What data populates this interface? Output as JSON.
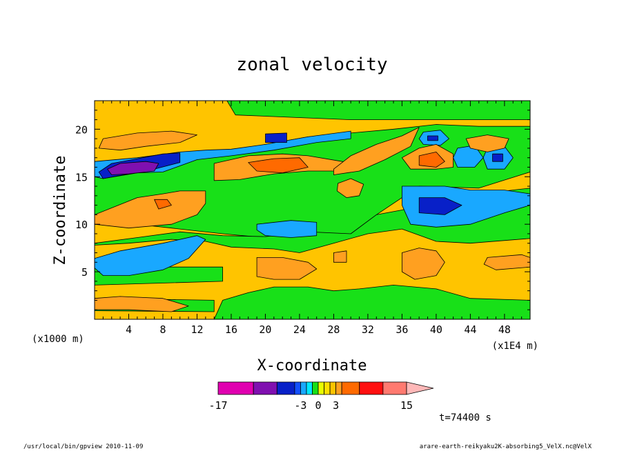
{
  "chart_data": {
    "type": "heatmap",
    "title": "zonal velocity",
    "xlabel": "X-coordinate",
    "ylabel": "Z-coordinate",
    "x_unit": "(x1E4 m)",
    "y_unit": "(x1000 m)",
    "xlim": [
      0,
      51
    ],
    "ylim": [
      0,
      23
    ],
    "x_ticks": [
      4,
      8,
      12,
      16,
      20,
      24,
      28,
      32,
      36,
      40,
      44,
      48
    ],
    "y_ticks": [
      5,
      10,
      15,
      20
    ],
    "time_label": "t=74400 s",
    "colorbar": {
      "tick_labels": [
        {
          "value": -17,
          "label": "-17"
        },
        {
          "value": -3,
          "label": "-3"
        },
        {
          "value": 0,
          "label": "0"
        },
        {
          "value": 3,
          "label": "3"
        },
        {
          "value": 15,
          "label": "15"
        }
      ],
      "levels": [
        -17,
        -11,
        -7,
        -4,
        -3,
        -2,
        -1,
        0,
        1,
        2,
        3,
        4,
        7,
        11,
        15
      ],
      "colors": [
        "#e000b0",
        "#8010b0",
        "#0820c8",
        "#1450ff",
        "#19a8ff",
        "#00e8ff",
        "#18e018",
        "#e8ff00",
        "#ffe000",
        "#ffc400",
        "#ffa020",
        "#ff6a00",
        "#ff1010",
        "#ff7a70",
        "#ffb8b8"
      ]
    },
    "regions": [
      {
        "value": 2,
        "points": [
          [
            0,
            0
          ],
          [
            51,
            0
          ],
          [
            51,
            23
          ],
          [
            0,
            23
          ]
        ]
      },
      {
        "value": -1,
        "points": [
          [
            17,
            23
          ],
          [
            51,
            23
          ],
          [
            51,
            15.5
          ],
          [
            45,
            13.8
          ],
          [
            38,
            14
          ],
          [
            33,
            11
          ],
          [
            30,
            9
          ],
          [
            26,
            8
          ],
          [
            21,
            8.5
          ],
          [
            15,
            9
          ],
          [
            10,
            9.5
          ],
          [
            5,
            10
          ],
          [
            0,
            11
          ],
          [
            0,
            15
          ],
          [
            5,
            15.8
          ],
          [
            10,
            16.8
          ],
          [
            15,
            17.6
          ],
          [
            20,
            18.4
          ],
          [
            25,
            19.2
          ],
          [
            30,
            19.6
          ],
          [
            35,
            20
          ],
          [
            40,
            20.5
          ],
          [
            45,
            20.3
          ],
          [
            51,
            20.3
          ],
          [
            51,
            21
          ],
          [
            30,
            21
          ],
          [
            16.5,
            21.5
          ],
          [
            15.5,
            23
          ]
        ]
      },
      {
        "value": -1,
        "points": [
          [
            0,
            8
          ],
          [
            5,
            8.6
          ],
          [
            10,
            9.2
          ],
          [
            15,
            8.8
          ],
          [
            20,
            8.7
          ],
          [
            25,
            9.2
          ],
          [
            30,
            9
          ],
          [
            33,
            11
          ],
          [
            36,
            11.5
          ],
          [
            40,
            12.5
          ],
          [
            45,
            13.2
          ],
          [
            51,
            13.8
          ],
          [
            51,
            8.5
          ],
          [
            44,
            8
          ],
          [
            40,
            8.2
          ],
          [
            36,
            9.5
          ],
          [
            32,
            9
          ],
          [
            28,
            8
          ],
          [
            24,
            7
          ],
          [
            21,
            7.4
          ],
          [
            16,
            7.6
          ],
          [
            13,
            8.2
          ],
          [
            9,
            8.4
          ],
          [
            4,
            8
          ],
          [
            0,
            7.8
          ]
        ]
      },
      {
        "value": -1,
        "points": [
          [
            14,
            0
          ],
          [
            51,
            0
          ],
          [
            51,
            2
          ],
          [
            44,
            2.2
          ],
          [
            40,
            3.2
          ],
          [
            35,
            3.6
          ],
          [
            31,
            3.2
          ],
          [
            28,
            3
          ],
          [
            25,
            3.4
          ],
          [
            21,
            3.4
          ],
          [
            18,
            2.8
          ],
          [
            15,
            2
          ]
        ]
      },
      {
        "value": -1,
        "points": [
          [
            0,
            2.2
          ],
          [
            14,
            2
          ],
          [
            14,
            0.8
          ],
          [
            0,
            0.9
          ]
        ]
      },
      {
        "value": -1,
        "points": [
          [
            0,
            5.5
          ],
          [
            15,
            5.5
          ],
          [
            15,
            4
          ],
          [
            0,
            3.6
          ]
        ]
      },
      {
        "value": -3,
        "points": [
          [
            0,
            6.4
          ],
          [
            3,
            7.2
          ],
          [
            8,
            8
          ],
          [
            12,
            8.8
          ],
          [
            13,
            8.4
          ],
          [
            11,
            6.4
          ],
          [
            8,
            5.2
          ],
          [
            4,
            4.6
          ],
          [
            1,
            4.6
          ],
          [
            0,
            5.4
          ]
        ]
      },
      {
        "value": -3,
        "points": [
          [
            36,
            14
          ],
          [
            41,
            14
          ],
          [
            44,
            13.6
          ],
          [
            48,
            13.6
          ],
          [
            51,
            13.2
          ],
          [
            51,
            12
          ],
          [
            48,
            11.2
          ],
          [
            44,
            10
          ],
          [
            40,
            9.7
          ],
          [
            37,
            10
          ],
          [
            36,
            12
          ]
        ]
      },
      {
        "value": -3,
        "points": [
          [
            0,
            16.6
          ],
          [
            5,
            17
          ],
          [
            10,
            17.6
          ],
          [
            13,
            17.8
          ],
          [
            16,
            17.9
          ],
          [
            20,
            18.4
          ],
          [
            25,
            19.2
          ],
          [
            30,
            19.8
          ],
          [
            30,
            19
          ],
          [
            26,
            18.6
          ],
          [
            21,
            17.8
          ],
          [
            16,
            17.2
          ],
          [
            12,
            16.8
          ],
          [
            8,
            15.5
          ],
          [
            5,
            15.4
          ],
          [
            1,
            14.8
          ],
          [
            0,
            15
          ]
        ]
      },
      {
        "value": -3,
        "points": [
          [
            19,
            10
          ],
          [
            23,
            10.4
          ],
          [
            26,
            10.2
          ],
          [
            26,
            8.8
          ],
          [
            23,
            8.6
          ],
          [
            20,
            8.8
          ],
          [
            19,
            9.4
          ]
        ]
      },
      {
        "value": -3,
        "points": [
          [
            38.5,
            19.7
          ],
          [
            40.5,
            19.9
          ],
          [
            41.5,
            19
          ],
          [
            40.5,
            18.3
          ],
          [
            38.5,
            18.4
          ],
          [
            38,
            19
          ]
        ]
      },
      {
        "value": -3,
        "points": [
          [
            42.5,
            18
          ],
          [
            44.5,
            18.3
          ],
          [
            45.5,
            17
          ],
          [
            44.5,
            16
          ],
          [
            42.5,
            16
          ],
          [
            42,
            17
          ]
        ]
      },
      {
        "value": -3,
        "points": [
          [
            46,
            18
          ],
          [
            48,
            18.2
          ],
          [
            49,
            17
          ],
          [
            48,
            15.8
          ],
          [
            46,
            15.8
          ],
          [
            45.5,
            17
          ]
        ]
      },
      {
        "value": -7,
        "points": [
          [
            0.5,
            15.5
          ],
          [
            2,
            16.4
          ],
          [
            5,
            16.9
          ],
          [
            8,
            17.4
          ],
          [
            10,
            17.5
          ],
          [
            10,
            16.5
          ],
          [
            7,
            15.8
          ],
          [
            4,
            15.3
          ],
          [
            1,
            14.8
          ]
        ]
      },
      {
        "value": -7,
        "points": [
          [
            38,
            12.8
          ],
          [
            41,
            12.8
          ],
          [
            43,
            12
          ],
          [
            41,
            11
          ],
          [
            38,
            11.2
          ]
        ]
      },
      {
        "value": -7,
        "points": [
          [
            20,
            19.5
          ],
          [
            22.5,
            19.6
          ],
          [
            22.5,
            18.6
          ],
          [
            20,
            18.6
          ]
        ]
      },
      {
        "value": -7,
        "points": [
          [
            39,
            19.3
          ],
          [
            40.2,
            19.3
          ],
          [
            40.2,
            18.8
          ],
          [
            39,
            18.8
          ]
        ]
      },
      {
        "value": -7,
        "points": [
          [
            46.6,
            17.4
          ],
          [
            47.8,
            17.4
          ],
          [
            47.8,
            16.6
          ],
          [
            46.6,
            16.6
          ]
        ]
      },
      {
        "value": -11,
        "points": [
          [
            1.5,
            15.8
          ],
          [
            3,
            16.4
          ],
          [
            6,
            16.6
          ],
          [
            7.5,
            16.4
          ],
          [
            7,
            15.6
          ],
          [
            4,
            15.3
          ],
          [
            2,
            15.2
          ]
        ]
      },
      {
        "value": 3,
        "points": [
          [
            0.5,
            18
          ],
          [
            1,
            19
          ],
          [
            5,
            19.6
          ],
          [
            9,
            19.8
          ],
          [
            12,
            19.4
          ],
          [
            10,
            18.6
          ],
          [
            6,
            18.2
          ],
          [
            3,
            17.8
          ]
        ]
      },
      {
        "value": 3,
        "points": [
          [
            14,
            16.4
          ],
          [
            18,
            17.2
          ],
          [
            22,
            17.4
          ],
          [
            25,
            17.2
          ],
          [
            29,
            16.6
          ],
          [
            30,
            16.4
          ],
          [
            29,
            15.6
          ],
          [
            25,
            15.6
          ],
          [
            21,
            15.3
          ],
          [
            17,
            14.7
          ],
          [
            14,
            14.6
          ]
        ]
      },
      {
        "value": 3,
        "points": [
          [
            0,
            11
          ],
          [
            5,
            12.8
          ],
          [
            8,
            13.2
          ],
          [
            10,
            13.5
          ],
          [
            13,
            13.5
          ],
          [
            13,
            12.2
          ],
          [
            12,
            11
          ],
          [
            9,
            10
          ],
          [
            4,
            9.6
          ],
          [
            0,
            10
          ]
        ]
      },
      {
        "value": 3,
        "points": [
          [
            28,
            15.8
          ],
          [
            30,
            17.2
          ],
          [
            33,
            18.4
          ],
          [
            36,
            19.3
          ],
          [
            38,
            20.2
          ],
          [
            37,
            18.2
          ],
          [
            34,
            16.8
          ],
          [
            31,
            15.6
          ],
          [
            28,
            15.2
          ]
        ]
      },
      {
        "value": 3,
        "points": [
          [
            36,
            17
          ],
          [
            38,
            18
          ],
          [
            40,
            18.4
          ],
          [
            42,
            17.4
          ],
          [
            42,
            16
          ],
          [
            40,
            15.8
          ],
          [
            37,
            15.8
          ]
        ]
      },
      {
        "value": 3,
        "points": [
          [
            43.5,
            19
          ],
          [
            46,
            19.4
          ],
          [
            48.5,
            19
          ],
          [
            48,
            18
          ],
          [
            46,
            17.6
          ],
          [
            44,
            18
          ]
        ]
      },
      {
        "value": 3,
        "points": [
          [
            28.5,
            14.3
          ],
          [
            30,
            14.8
          ],
          [
            31.5,
            14.2
          ],
          [
            31,
            13
          ],
          [
            29.5,
            12.8
          ],
          [
            28.4,
            13.5
          ]
        ]
      },
      {
        "value": 3,
        "points": [
          [
            0,
            2.2
          ],
          [
            3,
            2.4
          ],
          [
            8,
            2.2
          ],
          [
            11,
            1.4
          ],
          [
            9,
            0.8
          ],
          [
            4,
            1
          ],
          [
            0,
            1
          ]
        ]
      },
      {
        "value": 3,
        "points": [
          [
            19,
            6.5
          ],
          [
            22,
            6.5
          ],
          [
            25,
            6
          ],
          [
            26,
            5.3
          ],
          [
            24,
            4.2
          ],
          [
            21,
            4.2
          ],
          [
            19,
            4.5
          ]
        ]
      },
      {
        "value": 3,
        "points": [
          [
            28,
            7
          ],
          [
            29.5,
            7.2
          ],
          [
            29.5,
            6
          ],
          [
            28,
            6
          ]
        ]
      },
      {
        "value": 3,
        "points": [
          [
            36,
            7
          ],
          [
            38,
            7.5
          ],
          [
            40,
            7.2
          ],
          [
            41,
            6
          ],
          [
            40,
            4.6
          ],
          [
            37.5,
            4.2
          ],
          [
            36,
            5
          ]
        ]
      },
      {
        "value": 3,
        "points": [
          [
            46,
            6.5
          ],
          [
            50,
            6.8
          ],
          [
            51,
            6.5
          ],
          [
            51,
            5.5
          ],
          [
            47,
            5.2
          ],
          [
            45.6,
            5.8
          ]
        ]
      },
      {
        "value": 4,
        "points": [
          [
            18,
            16.5
          ],
          [
            21,
            16.9
          ],
          [
            24,
            17
          ],
          [
            25,
            16
          ],
          [
            22,
            15.4
          ],
          [
            19,
            15.6
          ]
        ]
      },
      {
        "value": 4,
        "points": [
          [
            38,
            17.2
          ],
          [
            40,
            17.6
          ],
          [
            41,
            16.6
          ],
          [
            40,
            16
          ],
          [
            38,
            16.2
          ]
        ]
      },
      {
        "value": 4,
        "points": [
          [
            7,
            12.6
          ],
          [
            8.5,
            12.6
          ],
          [
            9,
            12
          ],
          [
            7.5,
            11.6
          ]
        ]
      }
    ]
  },
  "footer": {
    "left": "/usr/local/bin/gpview  2010-11-09",
    "right": "arare-earth-reikyaku2K-absorbing5_VelX.nc@VelX"
  }
}
